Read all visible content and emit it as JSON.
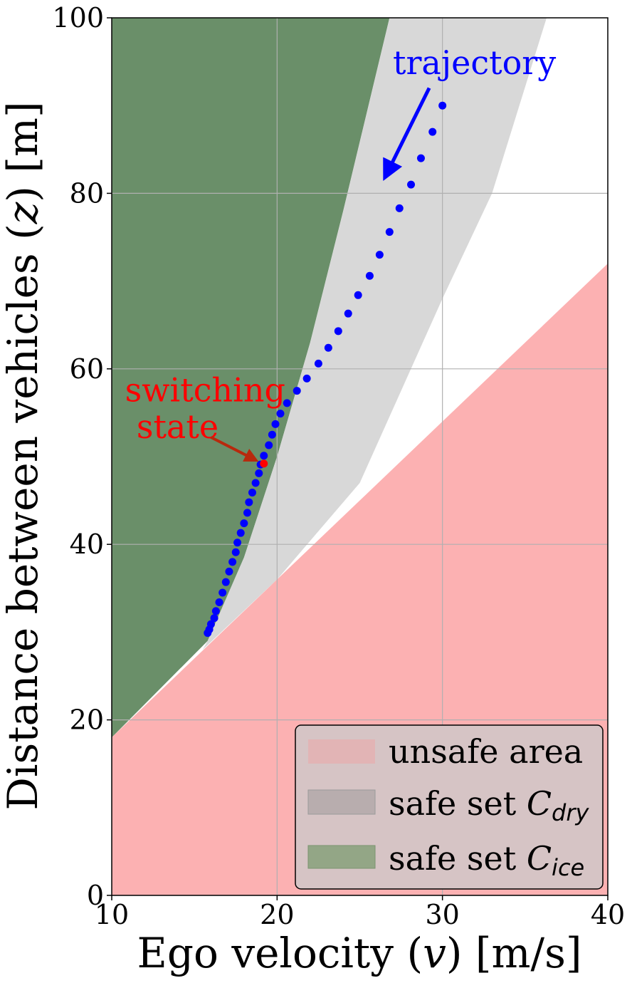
{
  "chart_data": {
    "type": "scatter",
    "xlabel": "Ego velocity (v) [m/s]",
    "xlabel_parts": {
      "pre": "Ego velocity (",
      "var": "v",
      "post": ") [m/s]"
    },
    "ylabel": "Distance between vehicles (z) [m]",
    "ylabel_parts": {
      "pre": "Distance between vehicles (",
      "var": "z",
      "post": ") [m]"
    },
    "xlim": [
      10,
      40
    ],
    "ylim": [
      0,
      100
    ],
    "xticks": [
      10,
      20,
      30,
      40
    ],
    "yticks": [
      0,
      20,
      40,
      60,
      80,
      100
    ],
    "grid": true,
    "legend_position": "lower-right",
    "legend": [
      {
        "label_text": "unsafe area",
        "label_sub": "",
        "color": "#fca5a6"
      },
      {
        "label_text": "safe set ",
        "label_symbol": "C",
        "label_sub": "dry",
        "color": "#a8a8a8"
      },
      {
        "label_text": "safe set ",
        "label_symbol": "C",
        "label_sub": "ice",
        "color": "#4f8a5b"
      }
    ],
    "regions": {
      "unsafe_area": {
        "color": "#fcb1b2",
        "boundary": {
          "x": [
            10,
            40
          ],
          "y": [
            18,
            72
          ]
        }
      },
      "safe_set_dry": {
        "color": "#d8d8d8",
        "boundary": {
          "x": [
            15.5,
            20,
            25,
            30,
            33,
            36.3
          ],
          "y": [
            28,
            36,
            47,
            68,
            80,
            100
          ]
        }
      },
      "safe_set_ice": {
        "color": "#6a8f69",
        "boundary": {
          "x": [
            15.8,
            18,
            20,
            22,
            24,
            26.8
          ],
          "y": [
            29,
            38.5,
            50,
            63,
            78,
            100
          ]
        }
      }
    },
    "series": [
      {
        "name": "trajectory",
        "color": "#0000ff",
        "x": [
          30.0,
          29.4,
          28.7,
          28.1,
          27.4,
          26.8,
          26.2,
          25.6,
          24.9,
          24.3,
          23.7,
          23.1,
          22.5,
          21.8,
          21.2,
          20.6,
          20.2,
          19.9,
          19.7,
          19.5,
          19.2,
          19.0,
          18.9,
          18.7,
          18.5,
          18.3,
          18.2,
          18.0,
          17.8,
          17.6,
          17.5,
          17.3,
          17.1,
          16.9,
          16.7,
          16.5,
          16.3,
          16.2,
          16.0,
          15.9,
          15.8
        ],
        "y": [
          90.0,
          87.0,
          84.0,
          81.0,
          78.3,
          75.6,
          73.0,
          70.6,
          68.4,
          66.3,
          64.3,
          62.4,
          60.6,
          58.9,
          57.5,
          56.1,
          54.9,
          53.7,
          52.5,
          51.3,
          50.1,
          49.1,
          48.1,
          47.0,
          45.9,
          44.8,
          43.6,
          42.4,
          41.3,
          40.2,
          39.1,
          38.0,
          36.9,
          35.7,
          34.5,
          33.4,
          32.4,
          31.6,
          30.9,
          30.3,
          29.9
        ]
      }
    ],
    "switching_state": {
      "x": 19.2,
      "y": 49.2,
      "color": "#ff0000"
    },
    "annotations": [
      {
        "text": "trajectory",
        "color": "#0000ff",
        "text_x": 27.0,
        "text_y": 93.6,
        "arrow_from": [
          29.2,
          92.0
        ],
        "arrow_to": [
          26.7,
          82.5
        ]
      },
      {
        "text_line1": "switching",
        "text_line2": "state",
        "color": "#ff0000",
        "arrow_color": "#b8290d",
        "text_x": 10.8,
        "text_y": 56.3,
        "text2_x": 11.5,
        "text2_y": 52.1,
        "arrow_from": [
          16.0,
          52.2
        ],
        "arrow_to": [
          18.5,
          49.8
        ]
      }
    ]
  }
}
